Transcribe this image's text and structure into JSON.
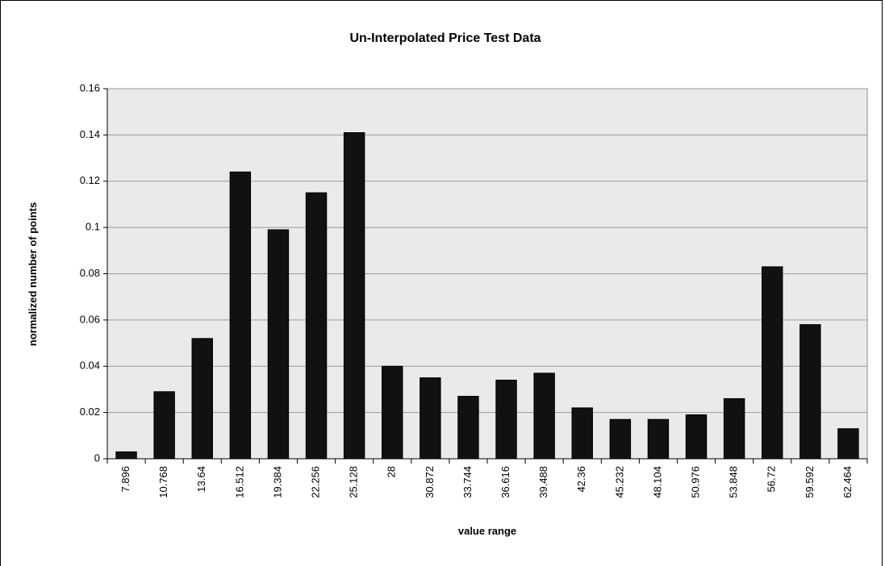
{
  "chart_data": {
    "type": "bar",
    "title": "Un-Interpolated Price Test Data",
    "x_label": "value range",
    "y_label": "normalized number of points",
    "categories": [
      "7.896",
      "10.768",
      "13.64",
      "16.512",
      "19.384",
      "22.256",
      "25.128",
      "28",
      "30.872",
      "33.744",
      "36.616",
      "39.488",
      "42.36",
      "45.232",
      "48.104",
      "50.976",
      "53.848",
      "56.72",
      "59.592",
      "62.464"
    ],
    "values": [
      0.003,
      0.029,
      0.052,
      0.124,
      0.099,
      0.115,
      0.141,
      0.04,
      0.035,
      0.027,
      0.034,
      0.037,
      0.022,
      0.017,
      0.017,
      0.019,
      0.026,
      0.083,
      0.058,
      0.013
    ],
    "color": "#111111",
    "ylim": [
      0,
      0.16
    ],
    "yticks": [
      0,
      0.02,
      0.04,
      0.06,
      0.08,
      0.1,
      0.12,
      0.14,
      0.16
    ],
    "grid": true
  }
}
